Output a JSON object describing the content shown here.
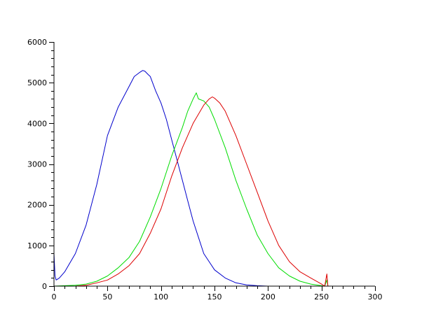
{
  "chart_data": {
    "type": "line",
    "title": "",
    "xlabel": "",
    "ylabel": "",
    "xlim": [
      0,
      300
    ],
    "ylim": [
      0,
      6000
    ],
    "grid": false,
    "x_ticks": [
      0,
      50,
      100,
      150,
      200,
      250,
      300
    ],
    "y_ticks": [
      0,
      1000,
      2000,
      3000,
      4000,
      5000,
      6000
    ],
    "x_tick_labels": [
      "0",
      "50",
      "100",
      "150",
      "200",
      "250",
      "300"
    ],
    "y_tick_labels": [
      "0",
      "1000",
      "2000",
      "3000",
      "4000",
      "5000",
      "6000"
    ],
    "series": [
      {
        "color": "#0000cc",
        "x": [
          0,
          1,
          2,
          5,
          10,
          20,
          30,
          40,
          50,
          60,
          70,
          75,
          80,
          83,
          85,
          88,
          90,
          95,
          100,
          105,
          110,
          115,
          120,
          125,
          130,
          135,
          140,
          145,
          150,
          160,
          170,
          180,
          190,
          200,
          255
        ],
        "y": [
          800,
          250,
          150,
          200,
          350,
          800,
          1500,
          2500,
          3700,
          4400,
          4900,
          5150,
          5250,
          5300,
          5280,
          5200,
          5150,
          4800,
          4500,
          4100,
          3600,
          3100,
          2600,
          2100,
          1600,
          1200,
          800,
          600,
          400,
          200,
          80,
          30,
          10,
          0,
          0
        ]
      },
      {
        "color": "#00dd00",
        "x": [
          0,
          20,
          30,
          40,
          50,
          60,
          70,
          80,
          90,
          100,
          110,
          120,
          125,
          130,
          133,
          135,
          140,
          145,
          150,
          160,
          170,
          180,
          190,
          200,
          210,
          220,
          230,
          240,
          250,
          253,
          255,
          256,
          258
        ],
        "y": [
          0,
          20,
          50,
          120,
          250,
          450,
          700,
          1100,
          1700,
          2400,
          3200,
          3900,
          4300,
          4600,
          4750,
          4600,
          4550,
          4400,
          4100,
          3400,
          2600,
          1900,
          1250,
          800,
          450,
          250,
          120,
          50,
          10,
          0,
          150,
          0,
          0
        ]
      },
      {
        "color": "#dd0000",
        "x": [
          0,
          20,
          30,
          40,
          50,
          60,
          70,
          80,
          90,
          100,
          110,
          120,
          130,
          140,
          145,
          148,
          150,
          155,
          160,
          170,
          180,
          190,
          200,
          210,
          220,
          230,
          240,
          250,
          253,
          255,
          256,
          258
        ],
        "y": [
          0,
          0,
          20,
          80,
          150,
          300,
          500,
          800,
          1300,
          1900,
          2700,
          3400,
          4000,
          4450,
          4600,
          4650,
          4620,
          4500,
          4300,
          3700,
          3000,
          2300,
          1600,
          1000,
          600,
          350,
          200,
          50,
          0,
          300,
          0,
          0
        ]
      }
    ]
  }
}
